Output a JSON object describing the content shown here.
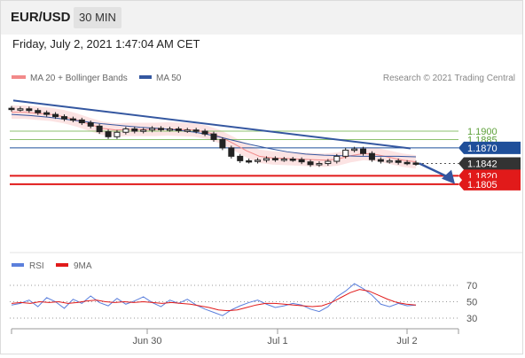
{
  "header": {
    "symbol": "EUR/USD",
    "timeframe": "30 MIN"
  },
  "datetime": "Friday, July 2, 2021 1:47:04 AM CET",
  "legend": {
    "bollinger_label": "MA 20 + Bollinger Bands",
    "ma50_label": "MA 50",
    "credit": "Research © 2021 Trading Central"
  },
  "rsi_legend": {
    "rsi_label": "RSI",
    "ma_label": "9MA"
  },
  "colors": {
    "bollinger": "#f28a8a",
    "bollinger_fill": "#fbd9d9",
    "ma50": "#3457a0",
    "trendline": "#3457a0",
    "resistance": "#8dc26f",
    "pivot": "#1f4f9a",
    "support": "#e11a1a",
    "current": "#333333",
    "rsi": "#5b7fdc",
    "rsi_ma": "#e11a1a",
    "candle": "#222222"
  },
  "chart_data": {
    "type": "candlestick",
    "title": "EUR/USD",
    "timeframe": "30 MIN",
    "price_range": [
      1.1795,
      1.196
    ],
    "x_ticks": [
      "Jun 30",
      "Jul 1",
      "Jul 2"
    ],
    "levels": [
      {
        "value": 1.19,
        "label": "1.1900",
        "kind": "resistance"
      },
      {
        "value": 1.1885,
        "label": "1.1885",
        "kind": "resistance"
      },
      {
        "value": 1.187,
        "label": "1.1870",
        "kind": "pivot"
      },
      {
        "value": 1.1842,
        "label": "1.1842",
        "kind": "current"
      },
      {
        "value": 1.182,
        "label": "1.1820",
        "kind": "support"
      },
      {
        "value": 1.1805,
        "label": "1.1805",
        "kind": "support"
      }
    ],
    "close_series": [
      1.1939,
      1.194,
      1.1937,
      1.1933,
      1.193,
      1.1926,
      1.1922,
      1.192,
      1.1915,
      1.1909,
      1.1899,
      1.189,
      1.1898,
      1.1904,
      1.19,
      1.1902,
      1.1905,
      1.1903,
      1.1904,
      1.1901,
      1.1902,
      1.19,
      1.1895,
      1.1885,
      1.187,
      1.1855,
      1.1847,
      1.1846,
      1.1848,
      1.1851,
      1.1849,
      1.185,
      1.1849,
      1.1845,
      1.184,
      1.1842,
      1.1846,
      1.1855,
      1.1866,
      1.1868,
      1.186,
      1.1849,
      1.1846,
      1.1847,
      1.1844,
      1.1843,
      1.1842
    ],
    "ma20_series": [
      1.1934,
      1.1934,
      1.1932,
      1.193,
      1.1926,
      1.192,
      1.1912,
      1.1905,
      1.1902,
      1.1903,
      1.1903,
      1.1903,
      1.1904,
      1.1903,
      1.1902,
      1.1898,
      1.189,
      1.1878,
      1.1865,
      1.1855,
      1.1852,
      1.1851,
      1.185,
      1.1849,
      1.1848,
      1.185,
      1.1856,
      1.186,
      1.1858,
      1.1853,
      1.1848,
      1.1845
    ],
    "ma50_series": [
      1.193,
      1.1928,
      1.1925,
      1.1921,
      1.1917,
      1.1913,
      1.191,
      1.1907,
      1.1905,
      1.1902,
      1.1898,
      1.1892,
      1.1884,
      1.1876,
      1.1869,
      1.1863,
      1.1859,
      1.1857,
      1.1856,
      1.1855,
      1.1855,
      1.1855,
      1.1854
    ],
    "bollinger_band_width": 0.0012,
    "rsi": {
      "levels": [
        70,
        50,
        30
      ],
      "range": [
        20,
        80
      ],
      "rsi_series": [
        46,
        48,
        52,
        44,
        55,
        50,
        42,
        53,
        48,
        57,
        49,
        45,
        54,
        47,
        51,
        56,
        49,
        44,
        52,
        48,
        53,
        46,
        41,
        37,
        33,
        40,
        45,
        49,
        52,
        47,
        43,
        45,
        48,
        46,
        41,
        38,
        44,
        56,
        63,
        72,
        66,
        58,
        47,
        44,
        48,
        45,
        46
      ],
      "ma_series": [
        48,
        49,
        48,
        50,
        49,
        50,
        48,
        49,
        51,
        52,
        50,
        49,
        50,
        49,
        50,
        49,
        48,
        49,
        48,
        47,
        45,
        43,
        40,
        39,
        40,
        43,
        46,
        48,
        48,
        47,
        46,
        45,
        44,
        45,
        49,
        55,
        61,
        65,
        63,
        58,
        53,
        49,
        47,
        46
      ]
    }
  }
}
